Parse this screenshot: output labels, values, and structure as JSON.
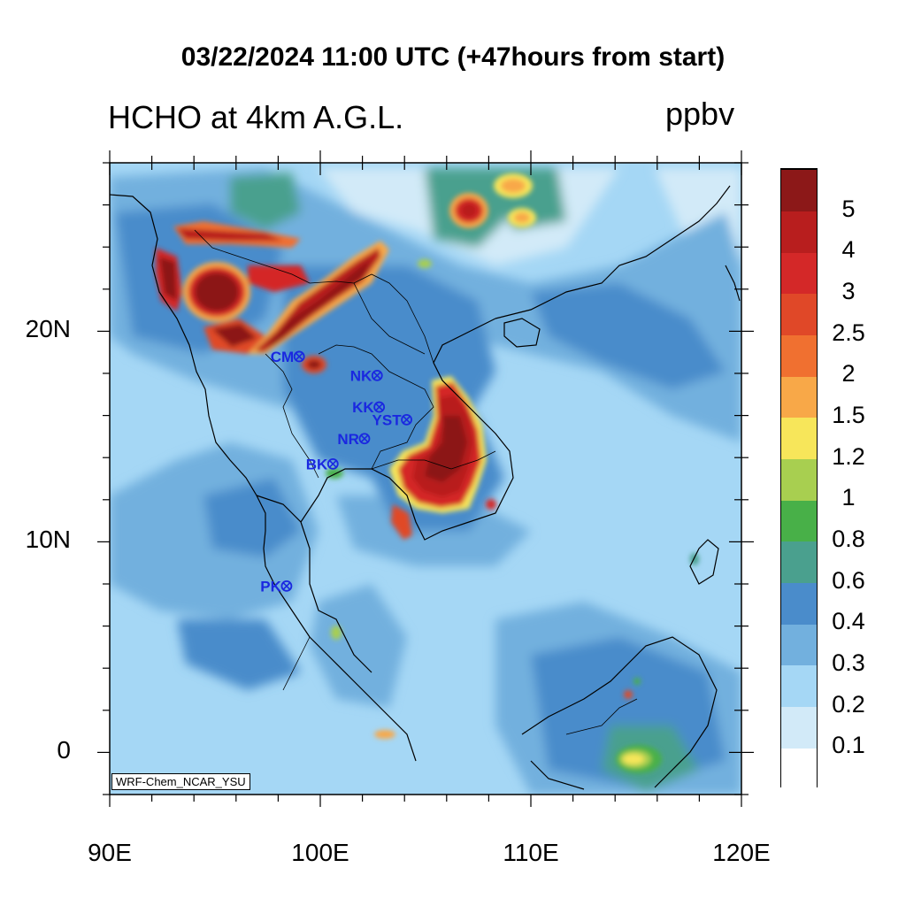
{
  "header": {
    "title": "03/22/2024 11:00 UTC (+47hours from start)",
    "subtitle": "HCHO at 4km A.G.L.",
    "units": "ppbv"
  },
  "credit": "WRF-Chem_NCAR_YSU",
  "map": {
    "lon_range": [
      90,
      120
    ],
    "lat_range": [
      -2,
      28
    ],
    "x_ticks": [
      {
        "value": 90,
        "label": "90E"
      },
      {
        "value": 100,
        "label": "100E"
      },
      {
        "value": 110,
        "label": "110E"
      },
      {
        "value": 120,
        "label": "120E"
      }
    ],
    "y_ticks": [
      {
        "value": 20,
        "label": "20N"
      },
      {
        "value": 10,
        "label": "10N"
      },
      {
        "value": 0,
        "label": "0"
      }
    ]
  },
  "stations": [
    {
      "label": "CM",
      "lon": 99.0,
      "lat": 18.8
    },
    {
      "label": "NK",
      "lon": 102.7,
      "lat": 17.9
    },
    {
      "label": "KK",
      "lon": 102.8,
      "lat": 16.4
    },
    {
      "label": "YST",
      "lon": 104.1,
      "lat": 15.8
    },
    {
      "label": "NR",
      "lon": 102.1,
      "lat": 14.9
    },
    {
      "label": "BK",
      "lon": 100.6,
      "lat": 13.7
    },
    {
      "label": "PK",
      "lon": 98.4,
      "lat": 7.9
    }
  ],
  "colorbar": {
    "colors": [
      "#ffffff",
      "#d2eaf8",
      "#a5d7f5",
      "#72b0de",
      "#4a8ccb",
      "#4aa08e",
      "#48b048",
      "#a8cf50",
      "#f7e65a",
      "#f8a848",
      "#f07030",
      "#e04828",
      "#d42828",
      "#b81e1e",
      "#8c1818"
    ],
    "labels": [
      "0.1",
      "0.2",
      "0.3",
      "0.4",
      "0.6",
      "0.8",
      "1",
      "1.2",
      "1.5",
      "2",
      "2.5",
      "3",
      "4",
      "5"
    ]
  }
}
